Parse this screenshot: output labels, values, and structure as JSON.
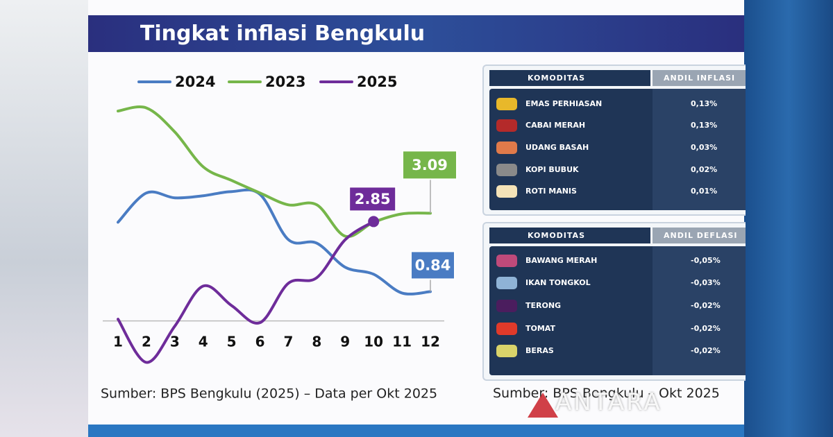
{
  "header": {
    "title": "Tingkat inflasi Bengkulu"
  },
  "chart_data": {
    "type": "line",
    "categories": [
      "1",
      "2",
      "3",
      "4",
      "5",
      "6",
      "7",
      "8",
      "9",
      "10",
      "11",
      "12"
    ],
    "series": [
      {
        "name": "2024",
        "color": "#4a7cc3",
        "values": [
          2.83,
          3.67,
          3.53,
          3.59,
          3.71,
          3.63,
          2.33,
          2.23,
          1.54,
          1.34,
          0.8,
          0.84
        ]
      },
      {
        "name": "2023",
        "color": "#76b64a",
        "values": [
          6.02,
          6.11,
          5.42,
          4.42,
          4.03,
          3.67,
          3.33,
          3.33,
          2.43,
          2.83,
          3.07,
          3.09
        ]
      },
      {
        "name": "2025",
        "color": "#6e2c9a",
        "values": [
          0.05,
          -1.19,
          -0.15,
          1.0,
          0.44,
          -0.05,
          1.08,
          1.24,
          2.33,
          2.85,
          null,
          null
        ]
      }
    ],
    "ylim": [
      -1.4,
      6.4
    ],
    "legend": "top",
    "source": "Sumber: BPS Bengkulu (2025) – Data per Okt 2025"
  },
  "inflation_table": {
    "headers": [
      "KOMODITAS",
      "ANDIL INFLASI"
    ],
    "rows": [
      [
        "EMAS PERHIASAN",
        "0,13%"
      ],
      [
        "CABAI MERAH",
        "0,13%"
      ],
      [
        "UDANG BASAH",
        "0,03%"
      ],
      [
        "KOPI BUBUK",
        "0,02%"
      ],
      [
        "ROTI MANIS",
        "0,01%"
      ]
    ]
  },
  "deflation_table": {
    "headers": [
      "KOMODITAS",
      "ANDIL DEFLASI"
    ],
    "rows": [
      [
        "BAWANG MERAH",
        "-0,05%"
      ],
      [
        "IKAN TONGKOL",
        "-0,03%"
      ],
      [
        "TERONG",
        "-0,02%"
      ],
      [
        "TOMAT",
        "-0,02%"
      ],
      [
        "BERAS",
        "-0,02%"
      ]
    ]
  },
  "table_source": "Sumber: BPS Bengkulu – Okt 2025",
  "watermark": "ANTARA"
}
